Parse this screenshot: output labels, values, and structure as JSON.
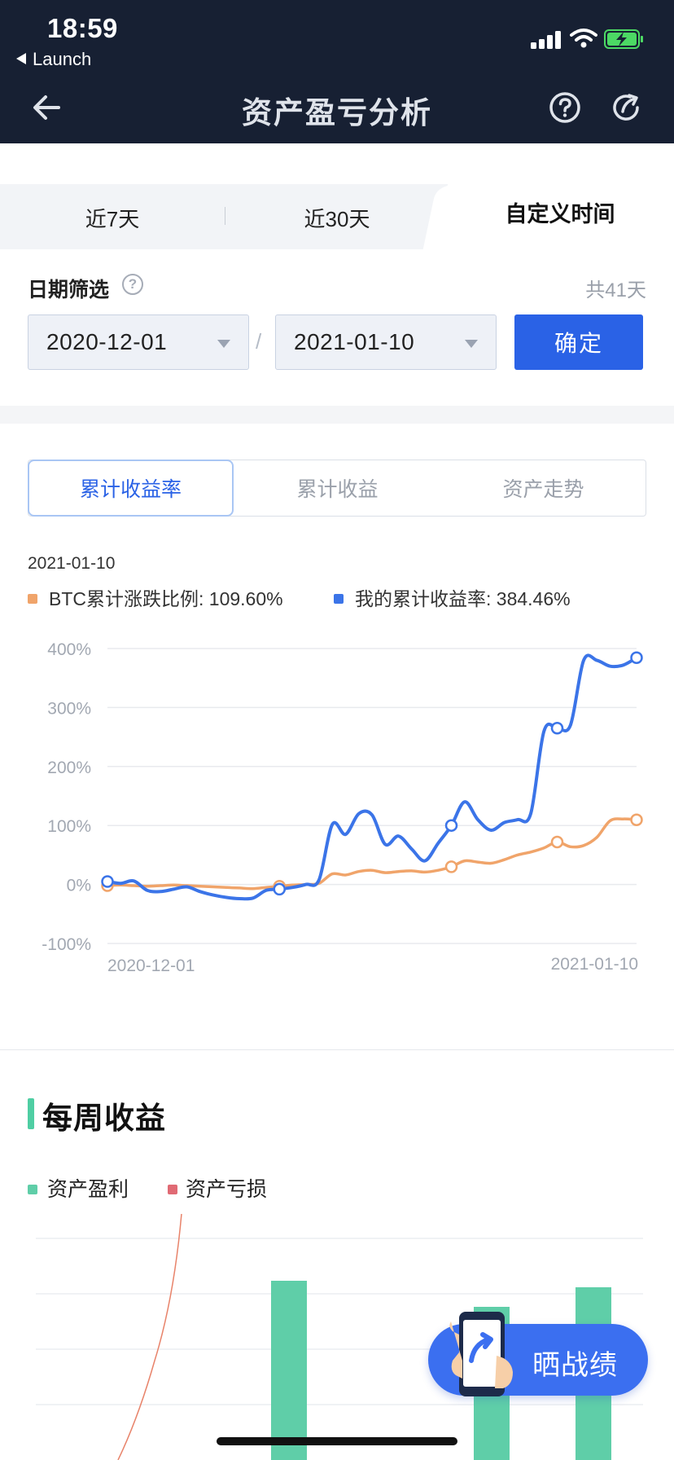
{
  "status_bar": {
    "time": "18:59",
    "back_app": "Launch"
  },
  "nav": {
    "title": "资产盈亏分析",
    "back_icon": "arrow-left-icon",
    "help_icon": "question-circle-icon",
    "share_icon": "share-arrow-icon"
  },
  "tabs": {
    "items": [
      "近7天",
      "近30天",
      "自定义时间"
    ],
    "active": "自定义时间"
  },
  "date_filter": {
    "label": "日期筛选",
    "total": "共41天",
    "start": "2020-12-01",
    "separator": "/",
    "end": "2021-01-10",
    "confirm": "确定"
  },
  "metric_tabs": {
    "items": [
      "累计收益率",
      "累计收益",
      "资产走势"
    ],
    "active": "累计收益率"
  },
  "chart_header": {
    "date": "2021-01-10",
    "legend": [
      {
        "label": "BTC累计涨跌比例: 109.60%",
        "color": "#f0a46a"
      },
      {
        "label": "我的累计收益率: 384.46%",
        "color": "#3b74e8"
      }
    ]
  },
  "chart_data": {
    "type": "line",
    "title": "",
    "x_tick_labels": [
      "2020-12-01",
      "2021-01-10"
    ],
    "x": [
      "2020-12-01",
      "2020-12-02",
      "2020-12-03",
      "2020-12-04",
      "2020-12-05",
      "2020-12-06",
      "2020-12-07",
      "2020-12-08",
      "2020-12-09",
      "2020-12-10",
      "2020-12-11",
      "2020-12-12",
      "2020-12-13",
      "2020-12-14",
      "2020-12-15",
      "2020-12-16",
      "2020-12-17",
      "2020-12-18",
      "2020-12-19",
      "2020-12-20",
      "2020-12-21",
      "2020-12-22",
      "2020-12-23",
      "2020-12-24",
      "2020-12-25",
      "2020-12-26",
      "2020-12-27",
      "2020-12-28",
      "2020-12-29",
      "2020-12-30",
      "2020-12-31",
      "2021-01-01",
      "2021-01-02",
      "2021-01-03",
      "2021-01-04",
      "2021-01-05",
      "2021-01-06",
      "2021-01-07",
      "2021-01-08",
      "2021-01-09",
      "2021-01-10"
    ],
    "y_ticks": [
      "400%",
      "300%",
      "200%",
      "100%",
      "0%",
      "-100%"
    ],
    "ylim": [
      -100,
      400
    ],
    "grid": true,
    "series": [
      {
        "name": "BTC累计涨跌比例",
        "color": "#f0a46a",
        "values": [
          -2,
          -1,
          -2,
          -3,
          -2,
          -1,
          -2,
          -3,
          -4,
          -5,
          -6,
          -7,
          -5,
          -3,
          -1,
          0,
          2,
          18,
          16,
          22,
          24,
          20,
          22,
          23,
          21,
          24,
          30,
          40,
          38,
          36,
          42,
          50,
          55,
          62,
          72,
          64,
          66,
          80,
          108,
          111,
          109.6
        ]
      },
      {
        "name": "我的累计收益率",
        "color": "#3b74e8",
        "values": [
          5,
          2,
          6,
          -10,
          -12,
          -8,
          -4,
          -12,
          -18,
          -22,
          -24,
          -23,
          -10,
          -8,
          -5,
          0,
          8,
          102,
          85,
          120,
          118,
          68,
          82,
          60,
          40,
          70,
          100,
          140,
          110,
          92,
          105,
          110,
          120,
          260,
          265,
          270,
          380,
          380,
          370,
          372,
          384.46
        ]
      }
    ],
    "markers": [
      "2020-12-01",
      "2020-12-14",
      "2020-12-27",
      "2021-01-04",
      "2021-01-10"
    ]
  },
  "weekly": {
    "title": "每周收益",
    "legend": [
      {
        "label": "资产盈利",
        "color": "#5fcea8"
      },
      {
        "label": "资产亏损",
        "color": "#e06a74"
      }
    ]
  },
  "share": {
    "label": "晒战绩",
    "icon": "phone-share-icon"
  }
}
